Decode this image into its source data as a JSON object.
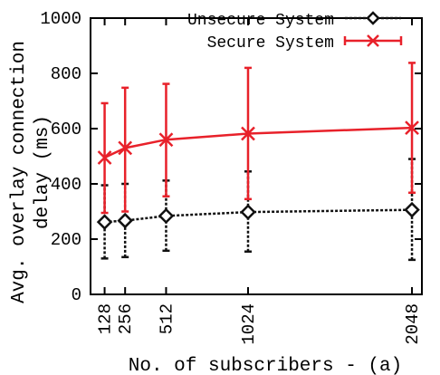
{
  "chart_data": {
    "type": "line",
    "title": "",
    "xlabel": "No. of subscribers - (a)",
    "ylabel_line1": "Avg. overlay connection",
    "ylabel_line2": "delay (ms)",
    "x": [
      128,
      256,
      512,
      1024,
      2048
    ],
    "x_tick_labels": [
      "128",
      "256",
      "512",
      "1024",
      "2048"
    ],
    "xlim": [
      40,
      2110
    ],
    "ylim": [
      0,
      1000
    ],
    "y_ticks": [
      0,
      200,
      400,
      600,
      800,
      1000
    ],
    "y_tick_labels": [
      "0",
      "200",
      "400",
      "600",
      "800",
      "1000"
    ],
    "grid": false,
    "legend_position": "top-right",
    "series": [
      {
        "name": "Unsecure System",
        "color": "#111111",
        "marker": "diamond",
        "line_style": "dotted",
        "values": [
          262,
          267,
          284,
          298,
          306
        ],
        "error_low": [
          130,
          135,
          158,
          155,
          125
        ],
        "error_high": [
          395,
          400,
          412,
          445,
          490
        ]
      },
      {
        "name": "Secure System",
        "color": "#e8212a",
        "marker": "x",
        "line_style": "solid",
        "values": [
          495,
          530,
          560,
          582,
          603
        ],
        "error_low": [
          295,
          300,
          355,
          345,
          368
        ],
        "error_high": [
          692,
          748,
          762,
          820,
          838
        ]
      }
    ]
  }
}
